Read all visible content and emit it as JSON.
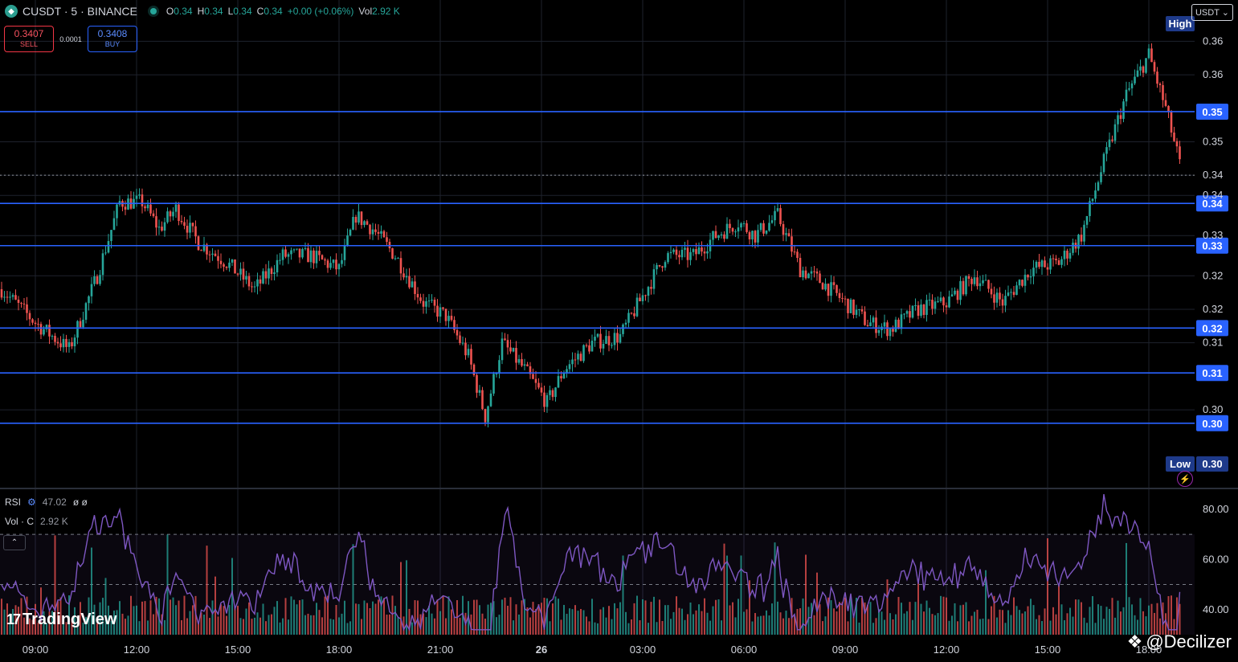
{
  "header": {
    "symbol_title": "CUSDT · 5 · BINANCE",
    "ohlc": [
      {
        "k": "O",
        "v": "0.34"
      },
      {
        "k": "H",
        "v": "0.34"
      },
      {
        "k": "L",
        "v": "0.34"
      },
      {
        "k": "C",
        "v": "0.34"
      },
      {
        "k": "",
        "v": "+0.00 (+0.06%)"
      },
      {
        "k": "Vol",
        "v": "2.92 K"
      }
    ],
    "currency": "USDT"
  },
  "trade": {
    "sell_price": "0.3407",
    "sell_label": "SELL",
    "spread": "0.0001",
    "buy_price": "0.3408",
    "buy_label": "BUY"
  },
  "indicators": {
    "rsi_label": "RSI",
    "rsi_value": "47.02",
    "rsi_extra": "ø ø",
    "vol_label": "Vol · C",
    "vol_value": "2.92 K"
  },
  "branding": {
    "tv": "TradingView",
    "watermark": "@Decilizer"
  },
  "colors": {
    "up": "#26a69a",
    "down": "#ef5350",
    "level_line": "#2962ff",
    "rsi_line": "#7e57c2",
    "grid": "#1e222d",
    "bg": "#000000"
  },
  "chart_data": {
    "type": "candlestick",
    "price_axis": {
      "ylim": [
        0.2955,
        0.3672
      ],
      "tick_labels": [
        "0.36",
        "0.36",
        "0.35",
        "0.34",
        "0.34",
        "0.33",
        "0.32",
        "0.32",
        "0.31",
        "0.30"
      ],
      "tick_values": [
        0.362,
        0.357,
        0.347,
        0.342,
        0.339,
        0.333,
        0.327,
        0.322,
        0.317,
        0.307
      ]
    },
    "time_axis": {
      "labels": [
        "09:00",
        "12:00",
        "15:00",
        "18:00",
        "21:00",
        "26",
        "03:00",
        "06:00",
        "09:00",
        "12:00",
        "15:00",
        "18:00"
      ],
      "bar_index": [
        12,
        48,
        84,
        120,
        156,
        192,
        228,
        264,
        300,
        336,
        372,
        408
      ],
      "n_bars": 420
    },
    "levels": [
      {
        "value": 0.3515,
        "label": "0.35"
      },
      {
        "value": 0.3378,
        "label": "0.34"
      },
      {
        "value": 0.3315,
        "label": "0.33"
      },
      {
        "value": 0.3192,
        "label": "0.32"
      },
      {
        "value": 0.3125,
        "label": "0.31"
      },
      {
        "value": 0.305,
        "label": "0.30"
      }
    ],
    "current_price": 0.342,
    "high": {
      "label": "High"
    },
    "low": {
      "label": "Low",
      "value": "0.30"
    },
    "price_keypoints": [
      [
        0,
        0.325
      ],
      [
        12,
        0.32
      ],
      [
        24,
        0.316
      ],
      [
        34,
        0.327
      ],
      [
        42,
        0.338
      ],
      [
        50,
        0.338
      ],
      [
        56,
        0.334
      ],
      [
        62,
        0.337
      ],
      [
        70,
        0.332
      ],
      [
        80,
        0.329
      ],
      [
        90,
        0.325
      ],
      [
        100,
        0.33
      ],
      [
        110,
        0.33
      ],
      [
        120,
        0.328
      ],
      [
        126,
        0.336
      ],
      [
        132,
        0.334
      ],
      [
        140,
        0.33
      ],
      [
        150,
        0.323
      ],
      [
        158,
        0.321
      ],
      [
        166,
        0.315
      ],
      [
        172,
        0.306
      ],
      [
        178,
        0.317
      ],
      [
        186,
        0.313
      ],
      [
        194,
        0.308
      ],
      [
        200,
        0.313
      ],
      [
        210,
        0.317
      ],
      [
        220,
        0.318
      ],
      [
        228,
        0.324
      ],
      [
        236,
        0.33
      ],
      [
        246,
        0.33
      ],
      [
        254,
        0.333
      ],
      [
        262,
        0.335
      ],
      [
        268,
        0.333
      ],
      [
        276,
        0.336
      ],
      [
        284,
        0.328
      ],
      [
        292,
        0.326
      ],
      [
        300,
        0.323
      ],
      [
        308,
        0.32
      ],
      [
        316,
        0.319
      ],
      [
        326,
        0.322
      ],
      [
        336,
        0.323
      ],
      [
        346,
        0.327
      ],
      [
        356,
        0.323
      ],
      [
        366,
        0.328
      ],
      [
        376,
        0.329
      ],
      [
        384,
        0.333
      ],
      [
        392,
        0.344
      ],
      [
        400,
        0.354
      ],
      [
        408,
        0.36
      ],
      [
        414,
        0.352
      ],
      [
        420,
        0.342
      ]
    ],
    "rsi": {
      "ylim": [
        30,
        87
      ],
      "tick_labels": [
        "80.00",
        "60.00",
        "40.00"
      ],
      "tick_values": [
        80,
        60,
        40
      ],
      "bands": [
        70,
        50
      ],
      "current": 47.02
    },
    "volume": {
      "current": "2.92 K"
    }
  }
}
